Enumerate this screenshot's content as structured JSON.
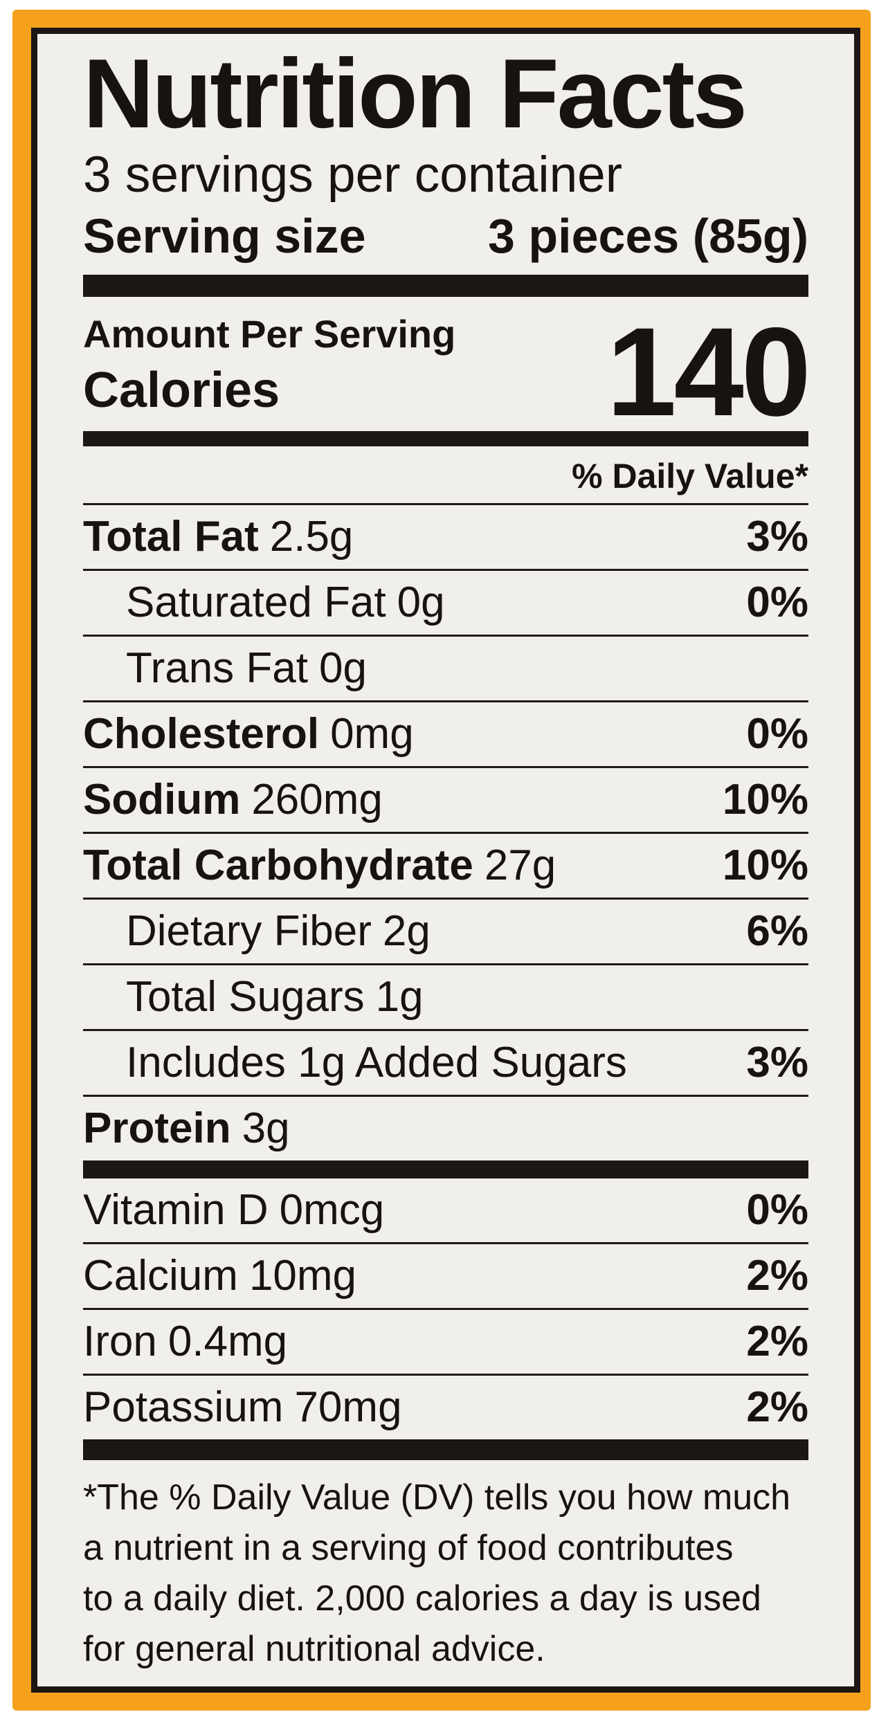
{
  "label": {
    "title": "Nutrition Facts",
    "servings_per_container": "3 servings per container",
    "serving_size_label": "Serving size",
    "serving_size_value": "3 pieces (85g)",
    "amount_per_serving": "Amount Per Serving",
    "calories_label": "Calories",
    "calories_value": "140",
    "daily_value_header": "% Daily Value*",
    "nutrients": [
      {
        "name": "Total Fat",
        "amount": "2.5g",
        "dv": "3%"
      },
      {
        "name": "Saturated Fat",
        "amount": "0g",
        "dv": "0%"
      },
      {
        "name": "Trans Fat",
        "amount": "0g",
        "dv": ""
      },
      {
        "name": "Cholesterol",
        "amount": "0mg",
        "dv": "0%"
      },
      {
        "name": "Sodium",
        "amount": "260mg",
        "dv": "10%"
      },
      {
        "name": "Total Carbohydrate",
        "amount": "27g",
        "dv": "10%"
      },
      {
        "name": "Dietary Fiber",
        "amount": "2g",
        "dv": "6%"
      },
      {
        "name": "Total Sugars",
        "amount": "1g",
        "dv": ""
      },
      {
        "name": "Includes 1g Added Sugars",
        "amount": "",
        "dv": "3%"
      },
      {
        "name": "Protein",
        "amount": "3g",
        "dv": ""
      }
    ],
    "vitamins": [
      {
        "name": "Vitamin D",
        "amount": "0mcg",
        "dv": "0%"
      },
      {
        "name": "Calcium",
        "amount": "10mg",
        "dv": "2%"
      },
      {
        "name": "Iron",
        "amount": "0.4mg",
        "dv": "2%"
      },
      {
        "name": "Potassium",
        "amount": "70mg",
        "dv": "2%"
      }
    ],
    "footnote_lines": [
      "*The % Daily Value (DV) tells you how much",
      "a nutrient in a serving of food contributes",
      "to a daily diet. 2,000 calories a day is used",
      "for general nutritional advice."
    ]
  },
  "colors": {
    "frame_orange": "#F5A11E",
    "panel_background": "#F1EFE9",
    "rule_black": "#1C1713",
    "text": "#171310"
  }
}
